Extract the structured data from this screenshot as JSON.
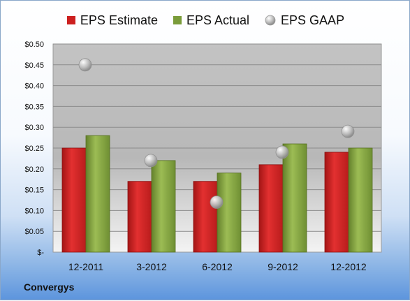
{
  "chart_data": {
    "type": "bar",
    "categories": [
      "12-2011",
      "3-2012",
      "6-2012",
      "9-2012",
      "12-2012"
    ],
    "series": [
      {
        "name": "EPS Estimate",
        "type": "bar",
        "color": "#cc1f1f",
        "values": [
          0.25,
          0.17,
          0.17,
          0.21,
          0.24
        ]
      },
      {
        "name": "EPS Actual",
        "type": "bar",
        "color": "#7a9c3a",
        "values": [
          0.28,
          0.22,
          0.19,
          0.26,
          0.25
        ]
      },
      {
        "name": "EPS GAAP",
        "type": "scatter",
        "color": "#b0b0b0",
        "values": [
          0.45,
          0.22,
          0.12,
          0.24,
          0.29
        ]
      }
    ],
    "ylim": [
      0,
      0.5
    ],
    "yticks": [
      0,
      0.05,
      0.1,
      0.15,
      0.2,
      0.25,
      0.3,
      0.35,
      0.4,
      0.45,
      0.5
    ],
    "ytick_labels": [
      "$-",
      "$0.05",
      "$0.10",
      "$0.15",
      "$0.20",
      "$0.25",
      "$0.30",
      "$0.35",
      "$0.40",
      "$0.45",
      "$0.50"
    ],
    "grid": true,
    "legend_position": "top"
  },
  "company": "Convergys"
}
